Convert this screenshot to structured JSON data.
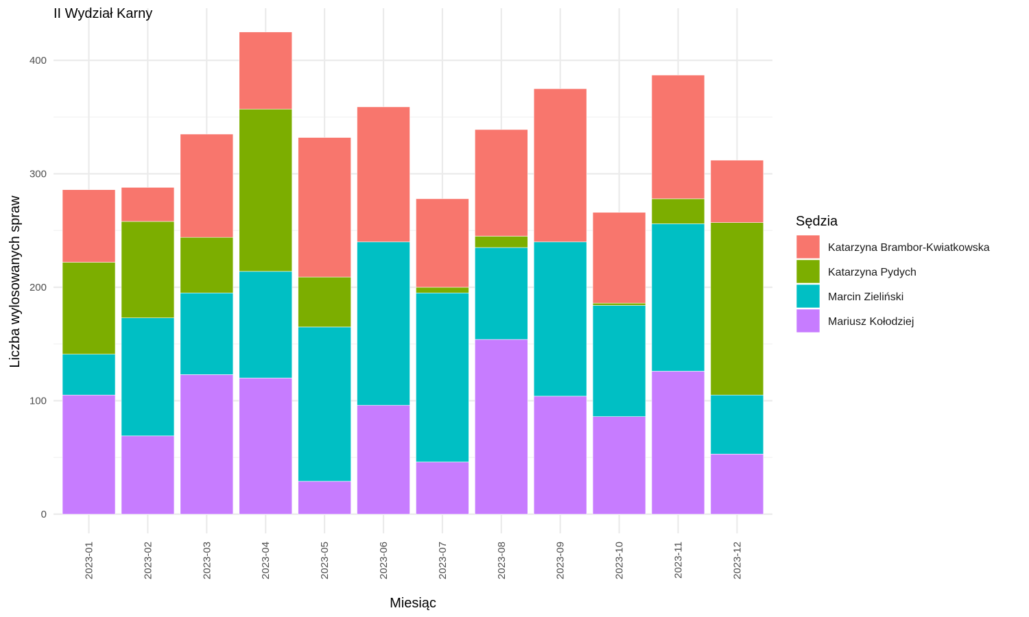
{
  "chart_data": {
    "type": "bar",
    "stacked": true,
    "title": "II Wydział Karny",
    "xlabel": "Miesiąc",
    "ylabel": "Liczba wylosowanych spraw",
    "ylim": [
      0,
      445
    ],
    "yticks": [
      0,
      100,
      200,
      300,
      400
    ],
    "grid": true,
    "categories": [
      "2023-01",
      "2023-02",
      "2023-03",
      "2023-04",
      "2023-05",
      "2023-06",
      "2023-07",
      "2023-08",
      "2023-09",
      "2023-10",
      "2023-11",
      "2023-12"
    ],
    "legend": {
      "title": "Sędzia",
      "position": "right"
    },
    "series": [
      {
        "name": "Mariusz Kołodziej",
        "color": "#C77CFF",
        "values": [
          105,
          69,
          123,
          120,
          29,
          96,
          46,
          154,
          104,
          86,
          126,
          53
        ]
      },
      {
        "name": "Marcin Zieliński",
        "color": "#00BFC4",
        "values": [
          36,
          104,
          72,
          94,
          136,
          144,
          149,
          81,
          136,
          98,
          130,
          52
        ]
      },
      {
        "name": "Katarzyna Pydych",
        "color": "#7CAE00",
        "values": [
          81,
          85,
          49,
          143,
          44,
          0,
          5,
          10,
          0,
          2,
          22,
          152
        ]
      },
      {
        "name": "Katarzyna Brambor-Kwiatkowska",
        "color": "#F8766D",
        "values": [
          64,
          30,
          91,
          68,
          123,
          119,
          78,
          94,
          135,
          80,
          109,
          55
        ]
      }
    ],
    "legend_order": [
      "Katarzyna Brambor-Kwiatkowska",
      "Katarzyna Pydych",
      "Marcin Zieliński",
      "Mariusz Kołodziej"
    ]
  }
}
